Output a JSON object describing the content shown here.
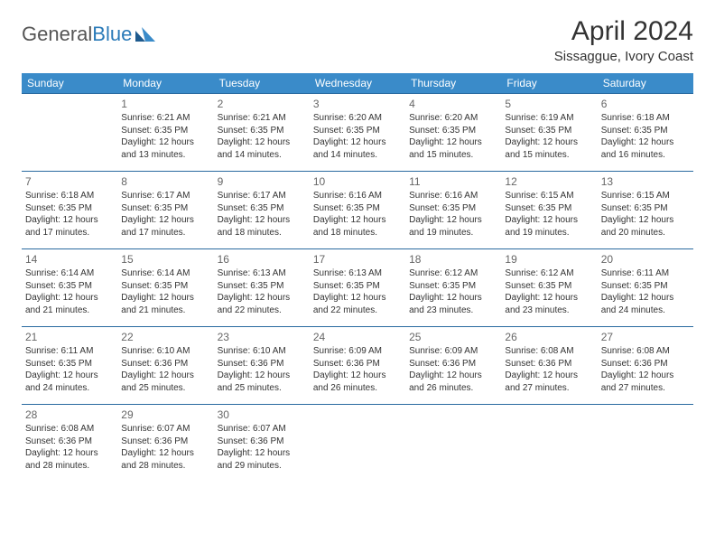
{
  "brand": {
    "part1": "General",
    "part2": "Blue"
  },
  "title": "April 2024",
  "location": "Sissaggue, Ivory Coast",
  "colors": {
    "header_bg": "#3a8bc9",
    "header_text": "#ffffff",
    "row_border": "#2a6aa0",
    "body_text": "#333333",
    "brand_gray": "#555555",
    "brand_blue": "#2a7ab8"
  },
  "days_of_week": [
    "Sunday",
    "Monday",
    "Tuesday",
    "Wednesday",
    "Thursday",
    "Friday",
    "Saturday"
  ],
  "weeks": [
    [
      null,
      {
        "n": "1",
        "sr": "6:21 AM",
        "ss": "6:35 PM",
        "dl": "12 hours and 13 minutes."
      },
      {
        "n": "2",
        "sr": "6:21 AM",
        "ss": "6:35 PM",
        "dl": "12 hours and 14 minutes."
      },
      {
        "n": "3",
        "sr": "6:20 AM",
        "ss": "6:35 PM",
        "dl": "12 hours and 14 minutes."
      },
      {
        "n": "4",
        "sr": "6:20 AM",
        "ss": "6:35 PM",
        "dl": "12 hours and 15 minutes."
      },
      {
        "n": "5",
        "sr": "6:19 AM",
        "ss": "6:35 PM",
        "dl": "12 hours and 15 minutes."
      },
      {
        "n": "6",
        "sr": "6:18 AM",
        "ss": "6:35 PM",
        "dl": "12 hours and 16 minutes."
      }
    ],
    [
      {
        "n": "7",
        "sr": "6:18 AM",
        "ss": "6:35 PM",
        "dl": "12 hours and 17 minutes."
      },
      {
        "n": "8",
        "sr": "6:17 AM",
        "ss": "6:35 PM",
        "dl": "12 hours and 17 minutes."
      },
      {
        "n": "9",
        "sr": "6:17 AM",
        "ss": "6:35 PM",
        "dl": "12 hours and 18 minutes."
      },
      {
        "n": "10",
        "sr": "6:16 AM",
        "ss": "6:35 PM",
        "dl": "12 hours and 18 minutes."
      },
      {
        "n": "11",
        "sr": "6:16 AM",
        "ss": "6:35 PM",
        "dl": "12 hours and 19 minutes."
      },
      {
        "n": "12",
        "sr": "6:15 AM",
        "ss": "6:35 PM",
        "dl": "12 hours and 19 minutes."
      },
      {
        "n": "13",
        "sr": "6:15 AM",
        "ss": "6:35 PM",
        "dl": "12 hours and 20 minutes."
      }
    ],
    [
      {
        "n": "14",
        "sr": "6:14 AM",
        "ss": "6:35 PM",
        "dl": "12 hours and 21 minutes."
      },
      {
        "n": "15",
        "sr": "6:14 AM",
        "ss": "6:35 PM",
        "dl": "12 hours and 21 minutes."
      },
      {
        "n": "16",
        "sr": "6:13 AM",
        "ss": "6:35 PM",
        "dl": "12 hours and 22 minutes."
      },
      {
        "n": "17",
        "sr": "6:13 AM",
        "ss": "6:35 PM",
        "dl": "12 hours and 22 minutes."
      },
      {
        "n": "18",
        "sr": "6:12 AM",
        "ss": "6:35 PM",
        "dl": "12 hours and 23 minutes."
      },
      {
        "n": "19",
        "sr": "6:12 AM",
        "ss": "6:35 PM",
        "dl": "12 hours and 23 minutes."
      },
      {
        "n": "20",
        "sr": "6:11 AM",
        "ss": "6:35 PM",
        "dl": "12 hours and 24 minutes."
      }
    ],
    [
      {
        "n": "21",
        "sr": "6:11 AM",
        "ss": "6:35 PM",
        "dl": "12 hours and 24 minutes."
      },
      {
        "n": "22",
        "sr": "6:10 AM",
        "ss": "6:36 PM",
        "dl": "12 hours and 25 minutes."
      },
      {
        "n": "23",
        "sr": "6:10 AM",
        "ss": "6:36 PM",
        "dl": "12 hours and 25 minutes."
      },
      {
        "n": "24",
        "sr": "6:09 AM",
        "ss": "6:36 PM",
        "dl": "12 hours and 26 minutes."
      },
      {
        "n": "25",
        "sr": "6:09 AM",
        "ss": "6:36 PM",
        "dl": "12 hours and 26 minutes."
      },
      {
        "n": "26",
        "sr": "6:08 AM",
        "ss": "6:36 PM",
        "dl": "12 hours and 27 minutes."
      },
      {
        "n": "27",
        "sr": "6:08 AM",
        "ss": "6:36 PM",
        "dl": "12 hours and 27 minutes."
      }
    ],
    [
      {
        "n": "28",
        "sr": "6:08 AM",
        "ss": "6:36 PM",
        "dl": "12 hours and 28 minutes."
      },
      {
        "n": "29",
        "sr": "6:07 AM",
        "ss": "6:36 PM",
        "dl": "12 hours and 28 minutes."
      },
      {
        "n": "30",
        "sr": "6:07 AM",
        "ss": "6:36 PM",
        "dl": "12 hours and 29 minutes."
      },
      null,
      null,
      null,
      null
    ]
  ],
  "labels": {
    "sunrise": "Sunrise:",
    "sunset": "Sunset:",
    "daylight": "Daylight:"
  }
}
